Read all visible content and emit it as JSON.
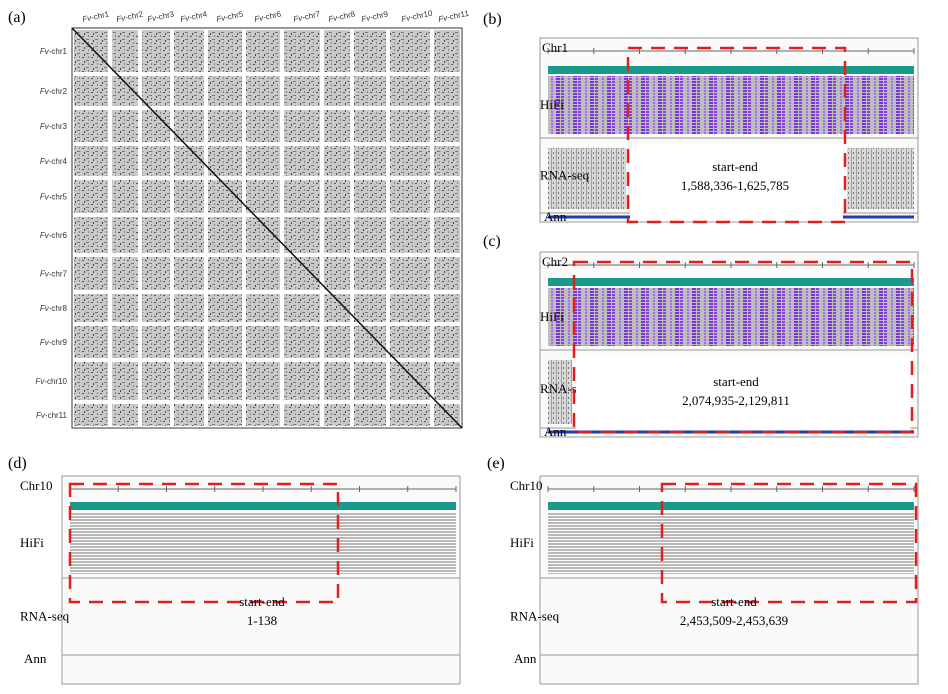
{
  "figure": {
    "dotplot": {
      "label": "(a)",
      "chromosomes": [
        "Fv-chr1",
        "Fv-chr2",
        "Fv-chr3",
        "Fv-chr4",
        "Fv-chr5",
        "Fv-chr6",
        "Fv-chr7",
        "Fv-chr8",
        "Fv-chr9",
        "Fv-chr10",
        "Fv-chr11"
      ]
    },
    "panels": [
      {
        "label": "(b)",
        "chrom": "Chr1",
        "tracks": [
          "HiFi",
          "RNA-seq",
          "Ann"
        ],
        "region_title": "start-end",
        "region": "1,588,336-1,625,785"
      },
      {
        "label": "(c)",
        "chrom": "Chr2",
        "tracks": [
          "HiFi",
          "RNA-seq",
          "Ann"
        ],
        "region_title": "start-end",
        "region": "2,074,935-2,129,811"
      },
      {
        "label": "(d)",
        "chrom": "Chr10",
        "tracks": [
          "HiFi",
          "RNA-seq",
          "Ann"
        ],
        "region_title": "start-end",
        "region": "1-138"
      },
      {
        "label": "(e)",
        "chrom": "Chr10",
        "tracks": [
          "HiFi",
          "RNA-seq",
          "Ann"
        ],
        "region_title": "start-end",
        "region": "2,453,509-2,453,639"
      }
    ]
  }
}
